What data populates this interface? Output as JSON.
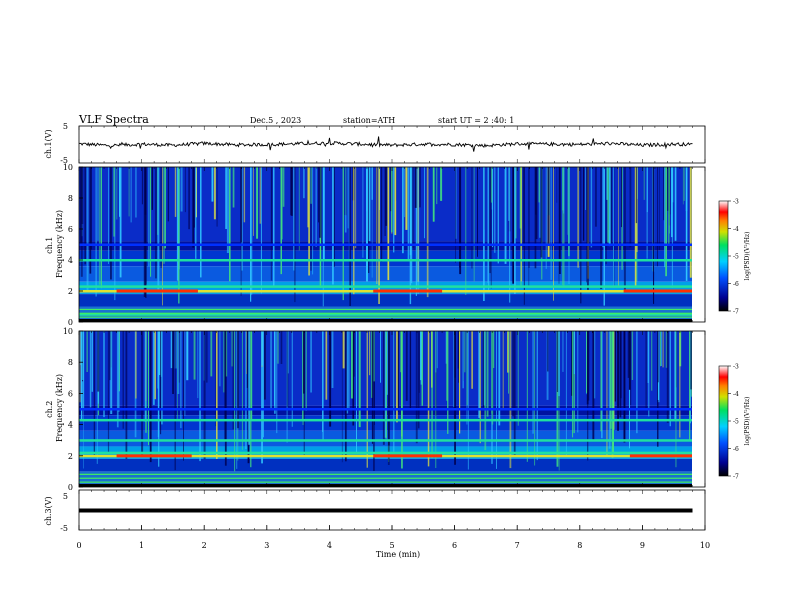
{
  "header": {
    "title": "VLF  Spectra",
    "date": "Dec.5  , 2023",
    "station": "station=ATH",
    "start_ut": "start  UT  =   2  :40: 1"
  },
  "colors": {
    "spectrogram_low": "#000060",
    "spectrogram_mid": "#00c8ff",
    "spectrogram_high": "#ff0000",
    "waveform": "#000000"
  },
  "chart_data": [
    {
      "id": "ch1-waveform",
      "type": "line",
      "ylabel": "ch.1(V)",
      "ylim": [
        -5,
        5
      ],
      "yticks": [
        "5",
        "-5"
      ],
      "x": [
        0,
        0.5,
        1,
        1.5,
        2,
        2.5,
        3,
        3.5,
        4,
        4.5,
        5,
        5.5,
        6,
        6.5,
        7,
        7.5,
        8,
        8.5,
        9,
        9.5,
        9.8
      ],
      "y": [
        0.2,
        -0.3,
        0.1,
        -0.2,
        0.3,
        -0.1,
        0.0,
        0.2,
        0.4,
        0.1,
        -0.2,
        0.1,
        0.0,
        -0.3,
        0.2,
        0.1,
        0.0,
        0.3,
        -0.2,
        0.1,
        0.0
      ]
    },
    {
      "id": "ch1-spectrogram",
      "type": "heatmap",
      "ylabel": "ch.1\nFrequency  (kHz)",
      "ylim": [
        0,
        10
      ],
      "yticks": [
        "0",
        "2",
        "4",
        "6",
        "8",
        "10"
      ],
      "xlim": [
        0,
        10
      ],
      "colorbar": {
        "label": "log(PSD)(V²/Hz)",
        "range": [
          -7,
          -3
        ],
        "ticks": [
          "-3",
          "-4",
          "-5",
          "-6",
          "-7"
        ]
      },
      "bands": [
        {
          "freq_khz": 2.0,
          "level": "high",
          "segments": [
            [
              0.6,
              1.9
            ],
            [
              4.7,
              5.8
            ],
            [
              8.7,
              9.8
            ]
          ]
        },
        {
          "freq_khz": 2.3,
          "level": "mid"
        },
        {
          "freq_khz": 4.0,
          "level": "mid"
        },
        {
          "freq_khz": 5.0,
          "level": "low"
        },
        {
          "freq_khz": 0.5,
          "level": "mid"
        }
      ]
    },
    {
      "id": "ch2-spectrogram",
      "type": "heatmap",
      "ylabel": "ch.2\nFrequency  (kHz)",
      "ylim": [
        0,
        10
      ],
      "yticks": [
        "0",
        "2",
        "4",
        "6",
        "8",
        "10"
      ],
      "xlim": [
        0,
        10
      ],
      "colorbar": {
        "label": "log(PSD)(V²/Hz)",
        "range": [
          -7,
          -3
        ],
        "ticks": [
          "-3",
          "-4",
          "-5",
          "-6",
          "-7"
        ]
      },
      "bands": [
        {
          "freq_khz": 2.0,
          "level": "high",
          "segments": [
            [
              0.6,
              1.8
            ],
            [
              4.7,
              5.8
            ],
            [
              8.8,
              9.8
            ]
          ]
        },
        {
          "freq_khz": 2.2,
          "level": "mid"
        },
        {
          "freq_khz": 3.0,
          "level": "mid"
        },
        {
          "freq_khz": 4.3,
          "level": "mid"
        },
        {
          "freq_khz": 5.0,
          "level": "low"
        }
      ]
    },
    {
      "id": "ch3-waveform",
      "type": "line",
      "ylabel": "ch.3(V)",
      "ylim": [
        -5,
        5
      ],
      "yticks": [
        "5",
        "-5"
      ],
      "x": [
        0,
        9.8
      ],
      "y": [
        0,
        0
      ]
    }
  ],
  "xaxis": {
    "label": "Time  (min)",
    "ticks": [
      "0",
      "1",
      "2",
      "3",
      "4",
      "5",
      "6",
      "7",
      "8",
      "9",
      "10"
    ],
    "xlim": [
      0,
      10
    ]
  }
}
